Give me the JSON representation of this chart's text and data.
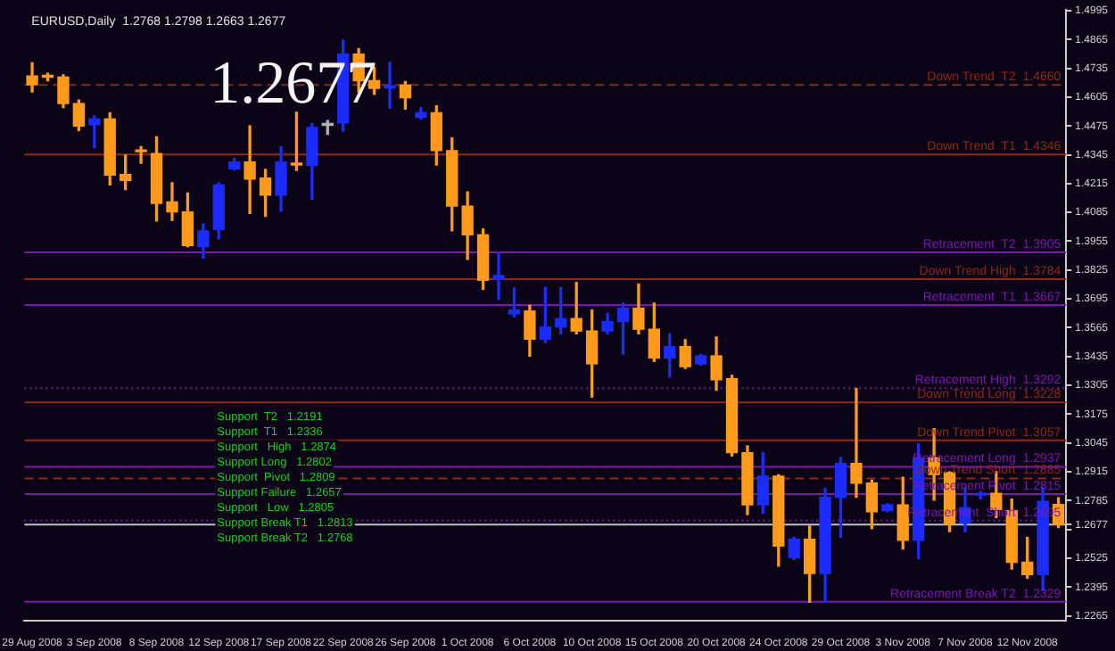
{
  "chart_data": {
    "type": "candlestick",
    "title": "EURUSD,Daily  1.2768 1.2798 1.2663 1.2677",
    "categories": [
      "29 Aug 2008",
      null,
      null,
      null,
      "3 Sep 2008",
      null,
      null,
      null,
      "8 Sep 2008",
      null,
      null,
      null,
      "12 Sep 2008",
      null,
      null,
      null,
      "17 Sep 2008",
      null,
      null,
      null,
      "22 Sep 2008",
      null,
      null,
      null,
      "26 Sep 2008",
      null,
      null,
      null,
      "1 Oct 2008",
      null,
      null,
      null,
      "6 Oct 2008",
      null,
      null,
      null,
      "10 Oct 2008",
      null,
      null,
      null,
      "15 Oct 2008",
      null,
      null,
      null,
      "20 Oct 2008",
      null,
      null,
      null,
      "24 Oct 2008",
      null,
      null,
      null,
      "29 Oct 2008",
      null,
      null,
      null,
      "3 Nov 2008",
      null,
      null,
      null,
      "7 Nov 2008",
      null,
      null,
      null,
      "12 Nov 2008",
      null,
      null
    ],
    "ohlc": [
      [
        1.47,
        1.476,
        1.4628,
        1.4661
      ],
      [
        1.47,
        1.4713,
        1.4679,
        1.4695
      ],
      [
        1.4695,
        1.4706,
        1.4558,
        1.4576
      ],
      [
        1.4576,
        1.4592,
        1.4454,
        1.4475
      ],
      [
        1.4481,
        1.452,
        1.4377,
        1.4506
      ],
      [
        1.4506,
        1.4535,
        1.4209,
        1.4253
      ],
      [
        1.4256,
        1.4343,
        1.4188,
        1.4229
      ],
      [
        1.4364,
        1.4382,
        1.4307,
        1.4359
      ],
      [
        1.4351,
        1.4426,
        1.4046,
        1.4126
      ],
      [
        1.4132,
        1.4219,
        1.4049,
        1.4087
      ],
      [
        1.4087,
        1.4173,
        1.393,
        1.3935
      ],
      [
        1.393,
        1.4033,
        1.3878,
        1.4002
      ],
      [
        1.4008,
        1.4219,
        1.3966,
        1.4209
      ],
      [
        1.4281,
        1.4328,
        1.4275,
        1.4312
      ],
      [
        1.4312,
        1.4475,
        1.408,
        1.4235
      ],
      [
        1.424,
        1.4279,
        1.4067,
        1.4163
      ],
      [
        1.4163,
        1.4382,
        1.409,
        1.4312
      ],
      [
        1.4307,
        1.4537,
        1.4274,
        1.4299
      ],
      [
        1.4297,
        1.4485,
        1.4144,
        1.4468
      ],
      [
        1.4478,
        1.4499,
        1.4437,
        1.4481
      ],
      [
        1.4489,
        1.4861,
        1.4452,
        1.4799
      ],
      [
        1.4799,
        1.4824,
        1.4628,
        1.4679
      ],
      [
        1.4679,
        1.4739,
        1.4617,
        1.4644
      ],
      [
        1.4646,
        1.4762,
        1.4555,
        1.4656
      ],
      [
        1.4659,
        1.4675,
        1.4551,
        1.4602
      ],
      [
        1.4514,
        1.4558,
        1.4506,
        1.4535
      ],
      [
        1.4535,
        1.4566,
        1.4299,
        1.4364
      ],
      [
        1.4364,
        1.4421,
        1.4002,
        1.4113
      ],
      [
        1.4113,
        1.4178,
        1.3873,
        1.3984
      ],
      [
        1.3984,
        1.401,
        1.3738,
        1.3779
      ],
      [
        1.3785,
        1.3904,
        1.3692,
        1.38
      ],
      [
        1.3627,
        1.3744,
        1.3614,
        1.3645
      ],
      [
        1.364,
        1.3666,
        1.3436,
        1.3513
      ],
      [
        1.3513,
        1.3746,
        1.3498,
        1.3568
      ],
      [
        1.3568,
        1.3746,
        1.3537,
        1.3606
      ],
      [
        1.3606,
        1.3769,
        1.3537,
        1.355
      ],
      [
        1.355,
        1.3645,
        1.3252,
        1.3402
      ],
      [
        1.355,
        1.363,
        1.3537,
        1.3593
      ],
      [
        1.3593,
        1.3676,
        1.3446,
        1.3653
      ],
      [
        1.3653,
        1.3762,
        1.3537,
        1.3558
      ],
      [
        1.3558,
        1.3676,
        1.3413,
        1.3428
      ],
      [
        1.3428,
        1.3537,
        1.3343,
        1.348
      ],
      [
        1.348,
        1.3511,
        1.3381,
        1.3389
      ],
      [
        1.3402,
        1.3444,
        1.3397,
        1.3438
      ],
      [
        1.3438,
        1.3523,
        1.3283,
        1.333
      ],
      [
        1.3335,
        1.335,
        1.2986,
        1.3001
      ],
      [
        1.3001,
        1.3032,
        1.2722,
        1.2766
      ],
      [
        1.2766,
        1.3001,
        1.2728,
        1.2895
      ],
      [
        1.2895,
        1.2901,
        1.2489,
        1.258
      ],
      [
        1.2528,
        1.2619,
        1.252,
        1.2611
      ],
      [
        1.2611,
        1.267,
        1.2327,
        1.2456
      ],
      [
        1.2456,
        1.2839,
        1.2327,
        1.28
      ],
      [
        1.28,
        1.298,
        1.2619,
        1.2953
      ],
      [
        1.2953,
        1.3291,
        1.28,
        1.2864
      ],
      [
        1.2864,
        1.2877,
        1.2658,
        1.2735
      ],
      [
        1.274,
        1.2771,
        1.2735,
        1.2766
      ],
      [
        1.2766,
        1.289,
        1.2567,
        1.2606
      ],
      [
        1.2606,
        1.304,
        1.2523,
        1.2978
      ],
      [
        1.2978,
        1.311,
        1.2787,
        1.2903
      ],
      [
        1.2911,
        1.2915,
        1.2645,
        1.2678
      ],
      [
        1.2683,
        1.2844,
        1.2645,
        1.2753
      ],
      [
        1.281,
        1.2825,
        1.2792,
        1.2813
      ],
      [
        1.2818,
        1.2916,
        1.2709,
        1.2745
      ],
      [
        1.274,
        1.2792,
        1.2476,
        1.2507
      ],
      [
        1.2507,
        1.2619,
        1.2435,
        1.2451
      ],
      [
        1.2451,
        1.2844,
        1.2379,
        1.2782
      ],
      [
        1.2768,
        1.2798,
        1.2663,
        1.2677
      ]
    ],
    "colors": [
      "#ff9a1a",
      "#ff9a1a",
      "#ff9a1a",
      "#ff9a1a",
      "#1a2cff",
      "#ff9a1a",
      "#ff9a1a",
      "#ff9a1a",
      "#ff9a1a",
      "#ff9a1a",
      "#ff9a1a",
      "#1a2cff",
      "#1a2cff",
      "#1a2cff",
      "#ff9a1a",
      "#ff9a1a",
      "#1a2cff",
      "#ff9a1a",
      "#1a2cff",
      "#b0b0b0",
      "#1a2cff",
      "#ff9a1a",
      "#ff9a1a",
      "#1a2cff",
      "#ff9a1a",
      "#1a2cff",
      "#ff9a1a",
      "#ff9a1a",
      "#ff9a1a",
      "#ff9a1a",
      "#1a2cff",
      "#1a2cff",
      "#ff9a1a",
      "#1a2cff",
      "#1a2cff",
      "#ff9a1a",
      "#ff9a1a",
      "#1a2cff",
      "#1a2cff",
      "#ff9a1a",
      "#ff9a1a",
      "#1a2cff",
      "#ff9a1a",
      "#1a2cff",
      "#ff9a1a",
      "#ff9a1a",
      "#ff9a1a",
      "#1a2cff",
      "#ff9a1a",
      "#1a2cff",
      "#ff9a1a",
      "#1a2cff",
      "#1a2cff",
      "#ff9a1a",
      "#ff9a1a",
      "#1a2cff",
      "#ff9a1a",
      "#1a2cff",
      "#ff9a1a",
      "#ff9a1a",
      "#1a2cff",
      "#1a2cff",
      "#ff9a1a",
      "#ff9a1a",
      "#ff9a1a",
      "#1a2cff",
      "#ff9a1a"
    ],
    "ylim": [
      1.2245,
      1.4998
    ],
    "yticks": [
      1.4995,
      1.4865,
      1.4735,
      1.4605,
      1.4475,
      1.4345,
      1.4215,
      1.4085,
      1.3955,
      1.3825,
      1.3695,
      1.3565,
      1.3435,
      1.3305,
      1.3175,
      1.3045,
      1.2915,
      1.2785,
      {
        "value": 1.2677,
        "label": "1.2677"
      },
      {
        "value": 1.2655,
        "label": null
      },
      1.2525,
      1.2395,
      1.2265
    ],
    "ref_lines": [
      {
        "axis": "y",
        "value": 1.466,
        "label": "Down Trend  T2  1.4660",
        "color": "#8c2a14",
        "line_style": "dashed"
      },
      {
        "axis": "y",
        "value": 1.4346,
        "label": "Down Trend  T1  1.4346",
        "color": "#8c2a14"
      },
      {
        "axis": "y",
        "value": 1.3905,
        "label": "Retracement  T2  1.3905",
        "color": "#7a18b0"
      },
      {
        "axis": "y",
        "value": 1.3784,
        "label": "Down Trend High  1.3784",
        "color": "#8c2a14"
      },
      {
        "axis": "y",
        "value": 1.3667,
        "label": "Retracement  T1  1.3667",
        "color": "#7a18b0"
      },
      {
        "axis": "y",
        "value": 1.3292,
        "label": "Retracement High  1.3292",
        "color": "#7a18b0",
        "line_style": "dotted"
      },
      {
        "axis": "y",
        "value": 1.3228,
        "label": "Down Trend Long  1.3228",
        "color": "#8c2a14"
      },
      {
        "axis": "y",
        "value": 1.3057,
        "label": "Down Trend Pivot  1.3057",
        "color": "#8c2a14"
      },
      {
        "axis": "y",
        "value": 1.2937,
        "label": "Retracement Long  1.2937",
        "color": "#7a18b0"
      },
      {
        "axis": "y",
        "value": 1.2885,
        "label": "Down Trend Short  1.2885",
        "color": "#8c2a14",
        "line_style": "dashed"
      },
      {
        "axis": "y",
        "value": 1.2815,
        "label": "Retracement Pivot  1.2815",
        "color": "#7a18b0"
      },
      {
        "axis": "y",
        "value": 1.2695,
        "label": "Retracement  Short  1.2695",
        "color": "#7a18b0",
        "line_style": "dotted"
      },
      {
        "axis": "y",
        "value": 1.2329,
        "label": "Retracement Break T2  1.2329",
        "color": "#7a18b0"
      },
      {
        "axis": "y",
        "value": 1.2677,
        "color": "#c0c0c0"
      }
    ],
    "annotations": [
      "1.2677",
      "Support  T2   1.2191",
      "Support  T1   1.2336",
      "Support   High   1.2874",
      "Support Long   1.2802",
      "Support  Pivot   1.2809",
      "Support Failure   1.2657",
      "Support   Low   1.2805",
      "Support Break T1   1.2813",
      "Support Break T2   1.2768"
    ],
    "grid": false,
    "legend": false
  }
}
